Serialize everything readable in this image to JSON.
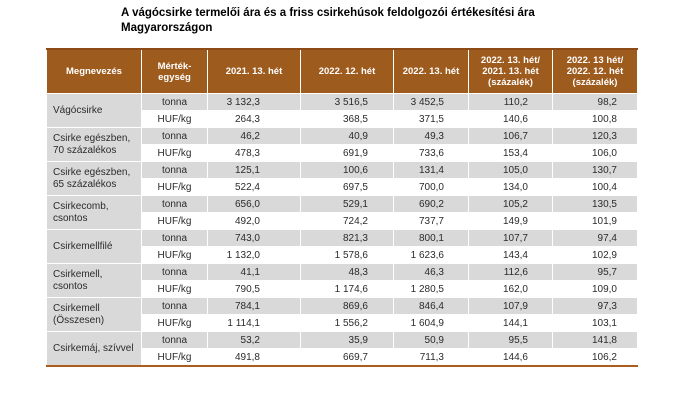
{
  "title_lines": [
    "A vágócsirke termelői ára és a friss csirkehúsok feldolgozói értékesítési ára",
    "Magyarországon"
  ],
  "colors": {
    "header_bg": "#9E5B1E",
    "alt_row_bg": "#D9D9D9",
    "cell_border": "#FFFFFF",
    "top_rule": "#8C4A16",
    "bottom_rule": "#AD5C1C",
    "header_text": "#FFFFFF",
    "body_text": "#2B2B2B"
  },
  "table": {
    "headers": [
      {
        "id": "megnevezes",
        "lines": [
          "Megnevezés"
        ]
      },
      {
        "id": "mertekegyseg",
        "lines": [
          "Mérték-",
          "egység"
        ]
      },
      {
        "id": "w2021_13",
        "lines": [
          "2021. 13. hét"
        ]
      },
      {
        "id": "w2022_12",
        "lines": [
          "2022. 12. hét"
        ]
      },
      {
        "id": "w2022_13",
        "lines": [
          "2022. 13. hét"
        ]
      },
      {
        "id": "pct_vs_2021",
        "lines": [
          "2022. 13. hét/",
          "2021. 13. hét",
          "(százalék)"
        ]
      },
      {
        "id": "pct_vs_prev",
        "lines": [
          "2022. 13 hét/",
          "2022. 12. hét",
          "(százalék)"
        ]
      }
    ],
    "unit_labels": [
      "tonna",
      "HUF/kg"
    ],
    "rows": [
      {
        "label": [
          "Vágócsirke"
        ],
        "tonna": [
          "3 132,3",
          "3 516,5",
          "3 452,5",
          "110,2",
          "98,2"
        ],
        "hufkg": [
          "264,3",
          "368,5",
          "371,5",
          "140,6",
          "100,8"
        ]
      },
      {
        "label": [
          "Csirke egészben,",
          "70 százalékos"
        ],
        "tonna": [
          "46,2",
          "40,9",
          "49,3",
          "106,7",
          "120,3"
        ],
        "hufkg": [
          "478,3",
          "691,9",
          "733,6",
          "153,4",
          "106,0"
        ]
      },
      {
        "label": [
          "Csirke egészben,",
          "65 százalékos"
        ],
        "tonna": [
          "125,1",
          "100,6",
          "131,4",
          "105,0",
          "130,7"
        ],
        "hufkg": [
          "522,4",
          "697,5",
          "700,0",
          "134,0",
          "100,4"
        ]
      },
      {
        "label": [
          "Csirkecomb, csontos"
        ],
        "tonna": [
          "656,0",
          "529,1",
          "690,2",
          "105,2",
          "130,5"
        ],
        "hufkg": [
          "492,0",
          "724,2",
          "737,7",
          "149,9",
          "101,9"
        ]
      },
      {
        "label": [
          "Csirkemellfilé"
        ],
        "tonna": [
          "743,0",
          "821,3",
          "800,1",
          "107,7",
          "97,4"
        ],
        "hufkg": [
          "1 132,0",
          "1 578,6",
          "1 623,6",
          "143,4",
          "102,9"
        ]
      },
      {
        "label": [
          "Csirkemell, csontos"
        ],
        "tonna": [
          "41,1",
          "48,3",
          "46,3",
          "112,6",
          "95,7"
        ],
        "hufkg": [
          "790,5",
          "1 174,6",
          "1 280,5",
          "162,0",
          "109,0"
        ]
      },
      {
        "label": [
          "Csirkemell (Összesen)"
        ],
        "tonna": [
          "784,1",
          "869,6",
          "846,4",
          "107,9",
          "97,3"
        ],
        "hufkg": [
          "1 114,1",
          "1 556,2",
          "1 604,9",
          "144,1",
          "103,1"
        ]
      },
      {
        "label": [
          "Csirkemáj, szívvel"
        ],
        "tonna": [
          "53,2",
          "35,9",
          "50,9",
          "95,5",
          "141,8"
        ],
        "hufkg": [
          "491,8",
          "669,7",
          "711,3",
          "144,6",
          "106,2"
        ]
      }
    ]
  }
}
